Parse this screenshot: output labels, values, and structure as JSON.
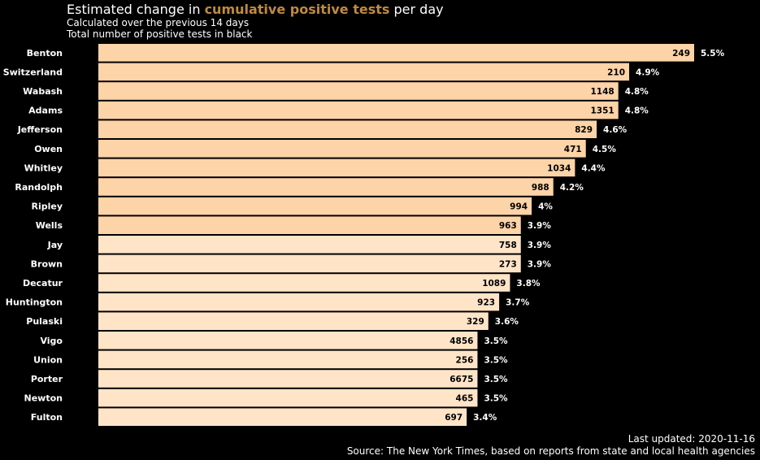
{
  "header": {
    "title_prefix": "Estimated change in ",
    "title_highlight": "cumulative positive tests",
    "title_suffix": " per day",
    "subtitle_1": "Calculated over the previous 14 days",
    "subtitle_2": "Total number of positive tests in black",
    "highlight_color": "#c08a3e"
  },
  "footer": {
    "updated": "Last updated: 2020-11-16",
    "source": "Source: The New York Times, based on reports from state and local health agencies"
  },
  "colors": {
    "background": "#000000",
    "bar_dark": "#fdd3a8",
    "bar_light": "#ffe4c8"
  },
  "chart_data": {
    "type": "bar",
    "orientation": "horizontal",
    "categories": [
      "Benton",
      "Switzerland",
      "Wabash",
      "Adams",
      "Jefferson",
      "Owen",
      "Whitley",
      "Randolph",
      "Ripley",
      "Wells",
      "Jay",
      "Brown",
      "Decatur",
      "Huntington",
      "Pulaski",
      "Vigo",
      "Union",
      "Porter",
      "Newton",
      "Fulton"
    ],
    "values": [
      5.5,
      4.9,
      4.8,
      4.8,
      4.6,
      4.5,
      4.4,
      4.2,
      4.0,
      3.9,
      3.9,
      3.9,
      3.8,
      3.7,
      3.6,
      3.5,
      3.5,
      3.5,
      3.5,
      3.4
    ],
    "value_labels": [
      "5.5%",
      "4.9%",
      "4.8%",
      "4.8%",
      "4.6%",
      "4.5%",
      "4.4%",
      "4.2%",
      "4%",
      "3.9%",
      "3.9%",
      "3.9%",
      "3.8%",
      "3.7%",
      "3.6%",
      "3.5%",
      "3.5%",
      "3.5%",
      "3.5%",
      "3.4%"
    ],
    "totals": [
      249,
      210,
      1148,
      1351,
      829,
      471,
      1034,
      988,
      994,
      963,
      758,
      273,
      1089,
      923,
      329,
      4856,
      256,
      6675,
      465,
      697
    ],
    "xlim": [
      0,
      5.5
    ],
    "grid": false,
    "legend": "none"
  }
}
